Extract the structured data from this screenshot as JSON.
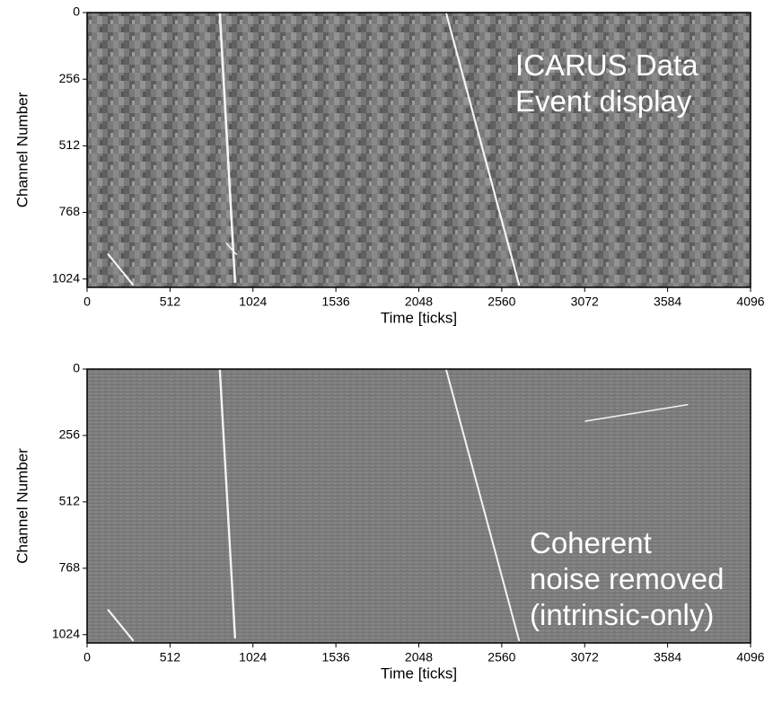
{
  "chart_data": [
    {
      "type": "image",
      "xlabel": "Time [ticks]",
      "ylabel": "Channel Number",
      "xlim": [
        0,
        4096
      ],
      "xticks": [
        0,
        512,
        1024,
        1536,
        2048,
        2560,
        3072,
        3584,
        4096
      ],
      "ylim": [
        1056,
        0
      ],
      "yticks": [
        0,
        256,
        512,
        768,
        1024
      ],
      "annotation": [
        "ICARUS Data",
        "Event display"
      ],
      "noise": "checker"
    },
    {
      "type": "image",
      "xlabel": "Time [ticks]",
      "ylabel": "Channel Number",
      "xlim": [
        0,
        4096
      ],
      "xticks": [
        0,
        512,
        1024,
        1536,
        2048,
        2560,
        3072,
        3584,
        4096
      ],
      "ylim": [
        1056,
        0
      ],
      "yticks": [
        0,
        256,
        512,
        768,
        1024
      ],
      "annotation": [
        "Coherent",
        "noise removed",
        "(intrinsic-only)"
      ],
      "noise": "stripes"
    }
  ]
}
